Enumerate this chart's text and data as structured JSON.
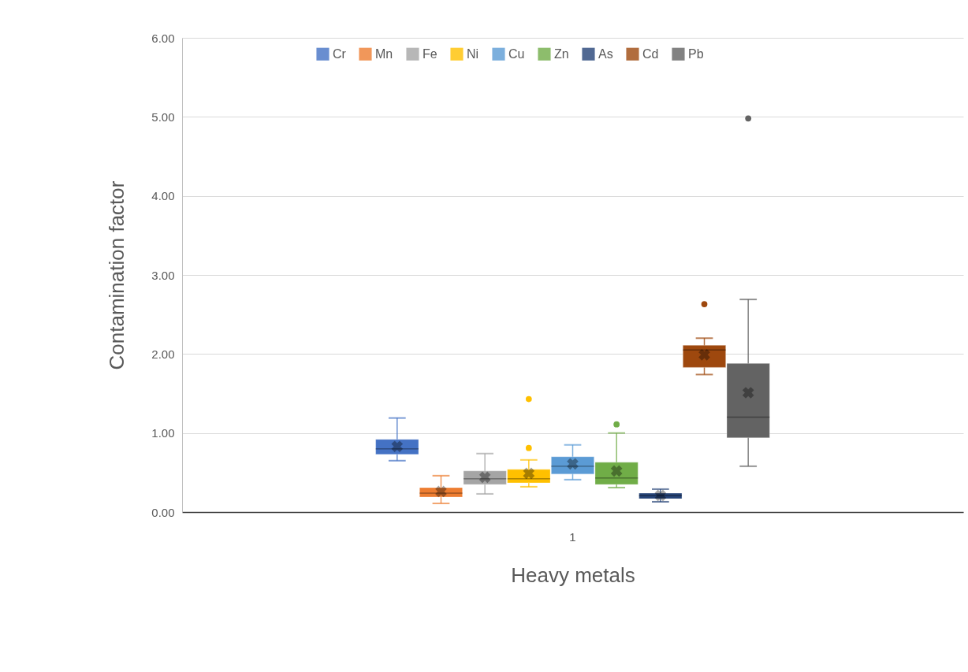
{
  "chart_data": {
    "type": "box",
    "xlabel": "Heavy metals",
    "ylabel": "Contamination factor",
    "categories": [
      "1"
    ],
    "ylim": [
      0,
      6
    ],
    "yticks": [
      {
        "value": 0,
        "label": "0.00"
      },
      {
        "value": 1,
        "label": "1.00"
      },
      {
        "value": 2,
        "label": "2.00"
      },
      {
        "value": 3,
        "label": "3.00"
      },
      {
        "value": 4,
        "label": "4.00"
      },
      {
        "value": 5,
        "label": "5.00"
      },
      {
        "value": 6,
        "label": "6.00"
      }
    ],
    "grid": "y",
    "legend": "top",
    "series": [
      {
        "name": "Cr",
        "color": "#4472c4",
        "boxes": [
          {
            "low": 0.65,
            "q1": 0.73,
            "median": 0.8,
            "q3": 0.92,
            "high": 1.19,
            "mean": 0.83
          }
        ]
      },
      {
        "name": "Mn",
        "color": "#ed7d31",
        "boxes": [
          {
            "low": 0.11,
            "q1": 0.19,
            "median": 0.24,
            "q3": 0.31,
            "high": 0.46,
            "mean": 0.26
          }
        ]
      },
      {
        "name": "Fe",
        "color": "#a5a5a5",
        "boxes": [
          {
            "low": 0.23,
            "q1": 0.35,
            "median": 0.42,
            "q3": 0.52,
            "high": 0.74,
            "mean": 0.44
          }
        ]
      },
      {
        "name": "Ni",
        "color": "#ffc000",
        "boxes": [
          {
            "low": 0.32,
            "q1": 0.37,
            "median": 0.42,
            "q3": 0.54,
            "high": 0.66,
            "mean": 0.49,
            "outliers": [
              0.81,
              1.43
            ]
          }
        ]
      },
      {
        "name": "Cu",
        "color": "#5b9bd5",
        "boxes": [
          {
            "low": 0.41,
            "q1": 0.48,
            "median": 0.58,
            "q3": 0.7,
            "high": 0.85,
            "mean": 0.61
          }
        ]
      },
      {
        "name": "Zn",
        "color": "#70ad47",
        "boxes": [
          {
            "low": 0.31,
            "q1": 0.35,
            "median": 0.43,
            "q3": 0.63,
            "high": 1.0,
            "mean": 0.52,
            "outliers": [
              1.11
            ]
          }
        ]
      },
      {
        "name": "As",
        "color": "#264478",
        "boxes": [
          {
            "low": 0.13,
            "q1": 0.17,
            "median": 0.21,
            "q3": 0.24,
            "high": 0.29,
            "mean": 0.21
          }
        ]
      },
      {
        "name": "Cd",
        "color": "#9e480e",
        "boxes": [
          {
            "low": 1.74,
            "q1": 1.83,
            "median": 2.05,
            "q3": 2.11,
            "high": 2.2,
            "mean": 1.99,
            "outliers": [
              2.63
            ]
          }
        ]
      },
      {
        "name": "Pb",
        "color": "#636363",
        "boxes": [
          {
            "low": 0.58,
            "q1": 0.94,
            "median": 1.2,
            "q3": 1.88,
            "high": 2.69,
            "mean": 1.51,
            "outliers": [
              4.98
            ]
          }
        ]
      }
    ]
  }
}
